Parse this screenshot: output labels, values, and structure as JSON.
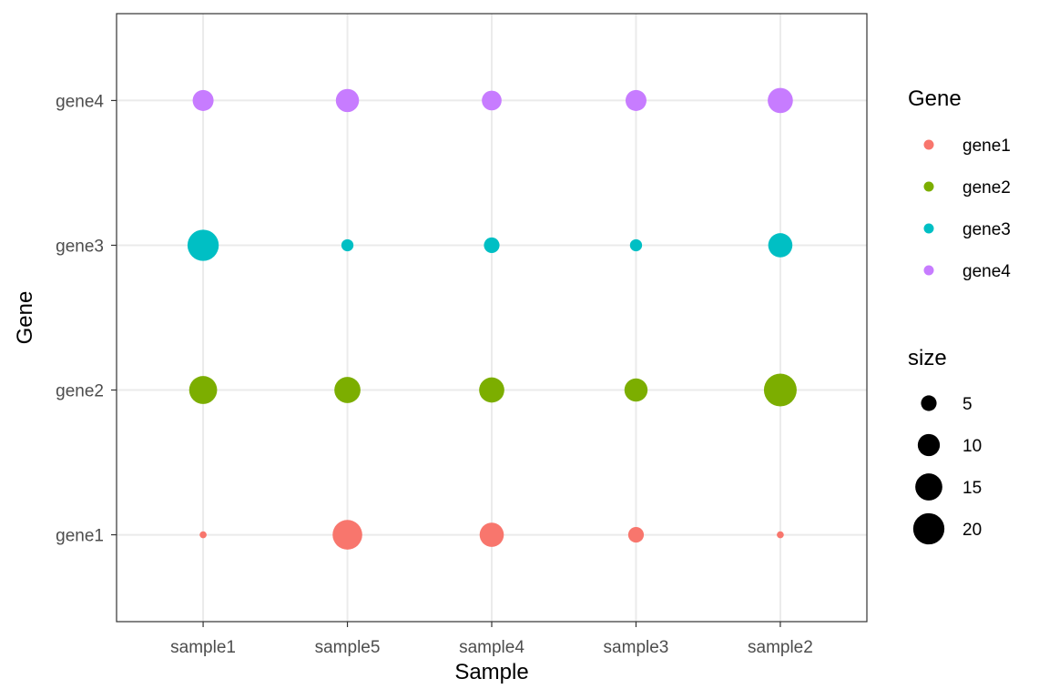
{
  "chart_data": {
    "type": "scatter",
    "title": "",
    "xlabel": "Sample",
    "ylabel": "Gene",
    "x_categories": [
      "sample1",
      "sample5",
      "sample4",
      "sample3",
      "sample2"
    ],
    "y_categories": [
      "gene1",
      "gene2",
      "gene3",
      "gene4"
    ],
    "grid": true,
    "legend_position": "right",
    "points": [
      {
        "x": "sample1",
        "y": "gene1",
        "size": 1
      },
      {
        "x": "sample5",
        "y": "gene1",
        "size": 18
      },
      {
        "x": "sample4",
        "y": "gene1",
        "size": 12
      },
      {
        "x": "sample3",
        "y": "gene1",
        "size": 5
      },
      {
        "x": "sample2",
        "y": "gene1",
        "size": 1
      },
      {
        "x": "sample1",
        "y": "gene2",
        "size": 16
      },
      {
        "x": "sample5",
        "y": "gene2",
        "size": 14
      },
      {
        "x": "sample4",
        "y": "gene2",
        "size": 13
      },
      {
        "x": "sample3",
        "y": "gene2",
        "size": 11
      },
      {
        "x": "sample2",
        "y": "gene2",
        "size": 22
      },
      {
        "x": "sample1",
        "y": "gene3",
        "size": 20
      },
      {
        "x": "sample5",
        "y": "gene3",
        "size": 3
      },
      {
        "x": "sample4",
        "y": "gene3",
        "size": 5
      },
      {
        "x": "sample3",
        "y": "gene3",
        "size": 3
      },
      {
        "x": "sample2",
        "y": "gene3",
        "size": 12
      },
      {
        "x": "sample1",
        "y": "gene4",
        "size": 9
      },
      {
        "x": "sample5",
        "y": "gene4",
        "size": 11
      },
      {
        "x": "sample4",
        "y": "gene4",
        "size": 8
      },
      {
        "x": "sample3",
        "y": "gene4",
        "size": 9
      },
      {
        "x": "sample2",
        "y": "gene4",
        "size": 13
      }
    ],
    "color_legend": {
      "title": "Gene",
      "entries": [
        {
          "label": "gene1",
          "color": "#F8766D"
        },
        {
          "label": "gene2",
          "color": "#7CAE00"
        },
        {
          "label": "gene3",
          "color": "#00BFC4"
        },
        {
          "label": "gene4",
          "color": "#C77CFF"
        }
      ]
    },
    "size_legend": {
      "title": "size",
      "entries": [
        {
          "label": "5",
          "value": 5
        },
        {
          "label": "10",
          "value": 10
        },
        {
          "label": "15",
          "value": 15
        },
        {
          "label": "20",
          "value": 20
        }
      ]
    },
    "colors": {
      "panel_border": "#333333",
      "grid": "#ebebeb",
      "tick": "#333333",
      "legend_key": "#000000"
    }
  }
}
